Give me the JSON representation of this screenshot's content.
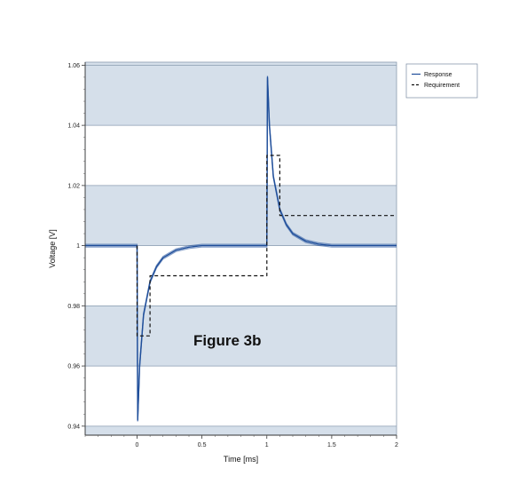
{
  "chart_data": {
    "type": "line",
    "xlabel": "Time [ms]",
    "ylabel": "Voltage [V]",
    "xlim": [
      -0.4,
      2
    ],
    "ylim": [
      0.937,
      1.061
    ],
    "x_ticks": [
      0,
      0.5,
      1,
      1.5,
      2
    ],
    "x_tick_labels": [
      "0",
      "0.5",
      "1",
      "1.5",
      "2"
    ],
    "y_ticks": [
      0.94,
      0.96,
      0.98,
      1,
      1.02,
      1.04,
      1.06
    ],
    "y_tick_labels": [
      "0.94",
      "0.96",
      "0.98",
      "1",
      "1.02",
      "1.04",
      "1.06"
    ],
    "bands": [
      [
        0.937,
        0.94
      ],
      [
        0.96,
        0.98
      ],
      [
        1.0,
        1.02
      ],
      [
        1.04,
        1.061
      ]
    ],
    "band_color": "#d5dfea",
    "legend_position": "top-right",
    "annotation": "Figure 3b",
    "series": [
      {
        "name": "Response",
        "color": "#1f4e9a",
        "style": "solid",
        "x": [
          -0.4,
          0,
          0.005,
          0.02,
          0.05,
          0.1,
          0.15,
          0.2,
          0.3,
          0.4,
          0.5,
          0.7,
          1.0,
          1.005,
          1.02,
          1.05,
          1.1,
          1.15,
          1.2,
          1.3,
          1.4,
          1.5,
          1.7,
          2.0
        ],
        "y": [
          1.0,
          1.0,
          0.942,
          0.96,
          0.977,
          0.988,
          0.993,
          0.996,
          0.9985,
          0.9995,
          1.0,
          1.0,
          1.0,
          1.056,
          1.04,
          1.023,
          1.012,
          1.007,
          1.004,
          1.0015,
          1.0005,
          1.0,
          1.0,
          1.0
        ]
      },
      {
        "name": "Requirement",
        "color": "#111111",
        "style": "dashed",
        "x": [
          0,
          0,
          0.1,
          0.1,
          1.0,
          1.0,
          1.1,
          1.1,
          2.0
        ],
        "y": [
          1.0,
          0.97,
          0.97,
          0.99,
          0.99,
          1.03,
          1.03,
          1.01,
          1.01
        ]
      }
    ]
  }
}
